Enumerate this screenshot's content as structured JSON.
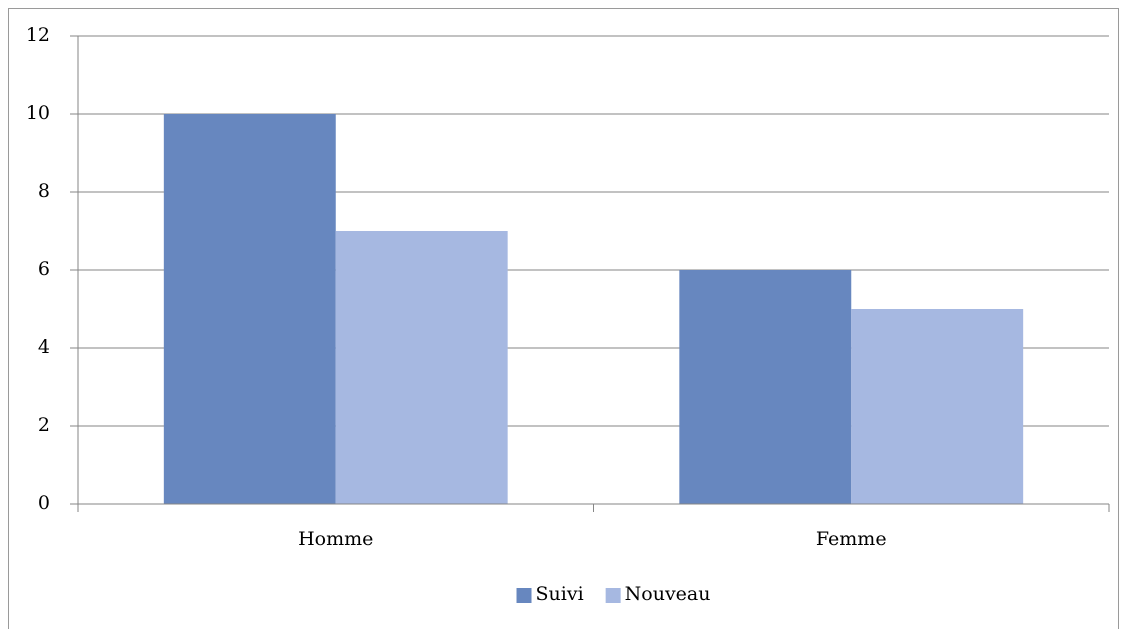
{
  "chart_data": {
    "type": "bar",
    "categories": [
      "Homme",
      "Femme"
    ],
    "series": [
      {
        "name": "Suivi",
        "color": "#6787bf",
        "values": [
          10,
          6
        ]
      },
      {
        "name": "Nouveau",
        "color": "#a6b8e1",
        "values": [
          7,
          5
        ]
      }
    ],
    "ylim": [
      0,
      12
    ],
    "yticks": [
      0,
      2,
      4,
      6,
      8,
      10,
      12
    ],
    "grid": true,
    "legend": "bottom"
  }
}
